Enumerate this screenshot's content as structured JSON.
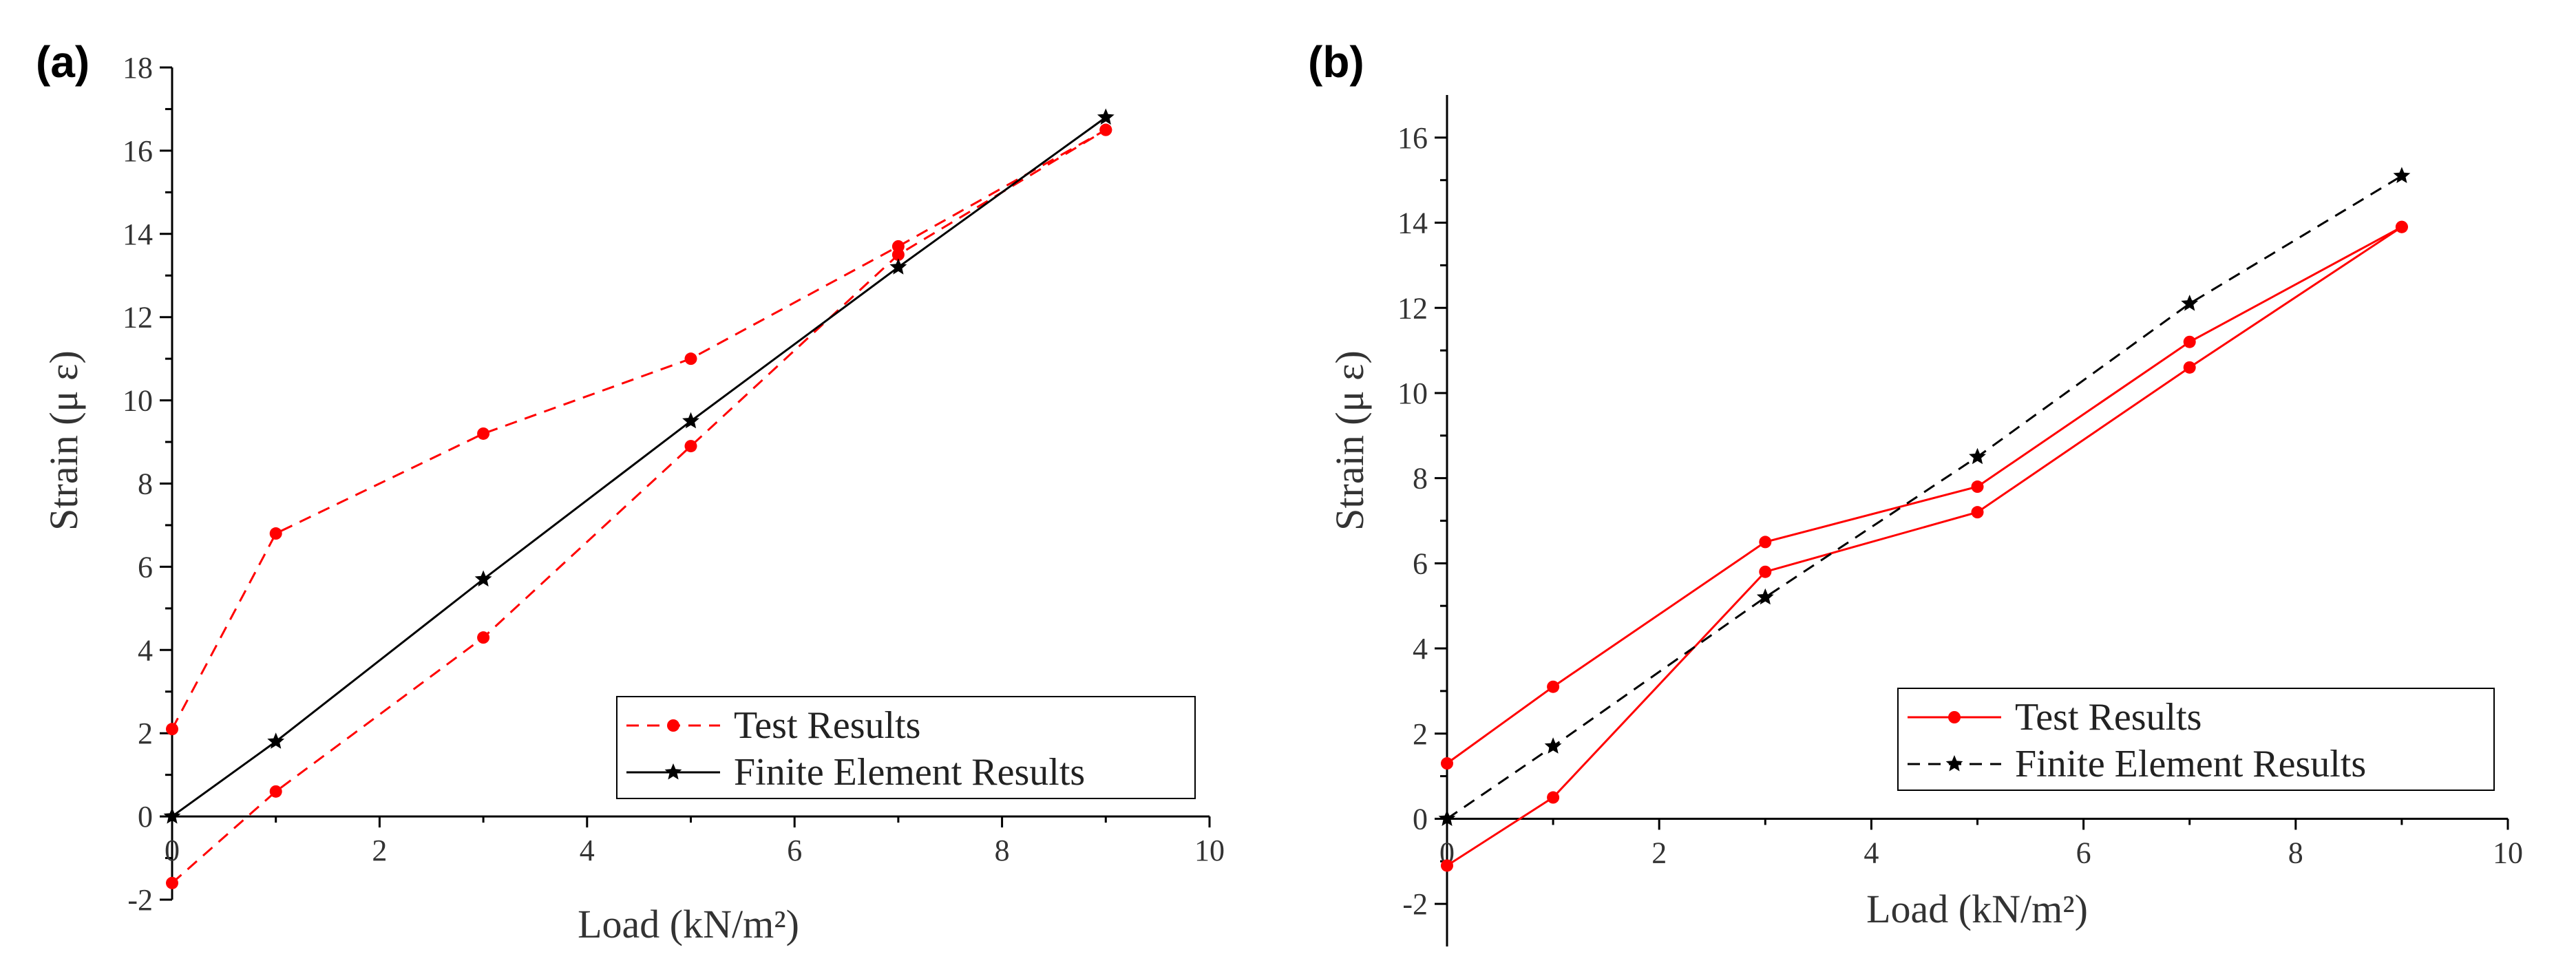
{
  "chart_data": [
    {
      "type": "line",
      "panel_label": "(a)",
      "xlabel": "Load (kN/m²)",
      "ylabel": "Strain (μ ε)",
      "xlim": [
        0,
        10
      ],
      "ylim": [
        -2,
        18
      ],
      "xticks": [
        0,
        2,
        4,
        6,
        8,
        10
      ],
      "yticks": [
        -2,
        0,
        2,
        4,
        6,
        8,
        10,
        12,
        14,
        16,
        18
      ],
      "legend_position": "bottom-right",
      "series": [
        {
          "name": "Test Results",
          "role": "test-upper",
          "color": "#ff0000",
          "style": "dashed",
          "marker": "circle",
          "legend": true,
          "x": [
            0,
            1,
            3,
            5,
            7,
            9
          ],
          "y": [
            2.1,
            6.8,
            9.2,
            11.0,
            13.7,
            16.5
          ]
        },
        {
          "name": "Test Results",
          "role": "test-lower",
          "color": "#ff0000",
          "style": "dashed",
          "marker": "circle",
          "legend": false,
          "x": [
            0,
            1,
            3,
            5,
            7,
            9
          ],
          "y": [
            -1.6,
            0.6,
            4.3,
            8.9,
            13.5,
            16.5
          ]
        },
        {
          "name": "Finite Element Results",
          "role": "fem",
          "color": "#000000",
          "style": "solid",
          "marker": "star",
          "legend": true,
          "x": [
            0,
            1,
            3,
            5,
            7,
            9
          ],
          "y": [
            0,
            1.8,
            5.7,
            9.5,
            13.2,
            16.8
          ]
        }
      ]
    },
    {
      "type": "line",
      "panel_label": "(b)",
      "xlabel": "Load (kN/m²)",
      "ylabel": "Strain (μ ε)",
      "xlim": [
        0,
        10
      ],
      "ylim": [
        -3,
        17
      ],
      "xticks": [
        0,
        2,
        4,
        6,
        8,
        10
      ],
      "yticks": [
        -2,
        0,
        2,
        4,
        6,
        8,
        10,
        12,
        14,
        16
      ],
      "legend_position": "bottom-right",
      "series": [
        {
          "name": "Test Results",
          "role": "test-upper",
          "color": "#ff0000",
          "style": "solid",
          "marker": "circle",
          "legend": true,
          "x": [
            0,
            1,
            3,
            5,
            7,
            9
          ],
          "y": [
            1.3,
            3.1,
            6.5,
            7.8,
            11.2,
            13.9
          ]
        },
        {
          "name": "Test Results",
          "role": "test-lower",
          "color": "#ff0000",
          "style": "solid",
          "marker": "circle",
          "legend": false,
          "x": [
            0,
            1,
            3,
            5,
            7,
            9
          ],
          "y": [
            -1.1,
            0.5,
            5.8,
            7.2,
            10.6,
            13.9
          ]
        },
        {
          "name": "Finite Element Results",
          "role": "fem",
          "color": "#000000",
          "style": "dashed",
          "marker": "star",
          "legend": true,
          "x": [
            0,
            1,
            3,
            5,
            7,
            9
          ],
          "y": [
            0,
            1.7,
            5.2,
            8.5,
            12.1,
            15.1
          ]
        }
      ]
    }
  ]
}
